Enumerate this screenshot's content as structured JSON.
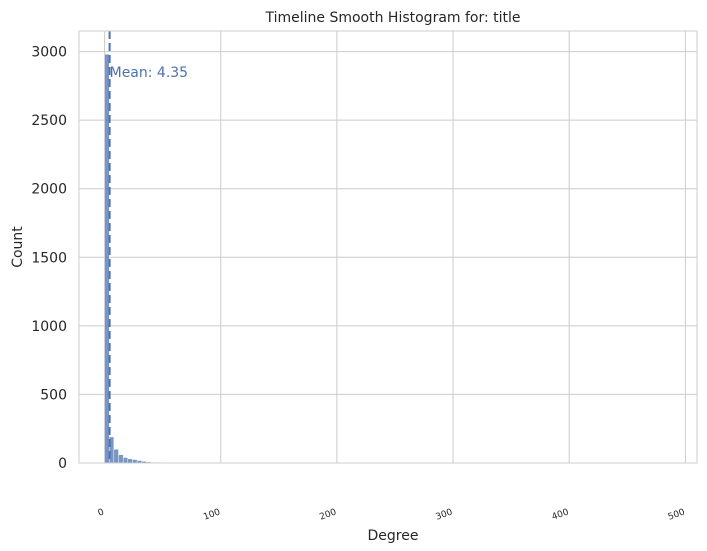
{
  "chart_data": {
    "type": "bar",
    "title": "Timeline Smooth Histogram for: title",
    "xlabel": "Degree",
    "ylabel": "Count",
    "xlim": [
      -22,
      510
    ],
    "ylim": [
      0,
      3150
    ],
    "xticks": [
      0,
      100,
      200,
      300,
      400,
      500
    ],
    "xtick_labels": [
      "0",
      "100",
      "200",
      "300",
      "400",
      "500"
    ],
    "yticks": [
      0,
      500,
      1000,
      1500,
      2000,
      2500,
      3000
    ],
    "ytick_labels": [
      "0",
      "500",
      "1000",
      "1500",
      "2000",
      "2500",
      "3000"
    ],
    "grid": true,
    "bin_width": 4,
    "bins": [
      {
        "x": 0,
        "count": 2980
      },
      {
        "x": 4,
        "count": 190
      },
      {
        "x": 8,
        "count": 100
      },
      {
        "x": 12,
        "count": 60
      },
      {
        "x": 16,
        "count": 40
      },
      {
        "x": 20,
        "count": 30
      },
      {
        "x": 24,
        "count": 25
      },
      {
        "x": 28,
        "count": 18
      },
      {
        "x": 32,
        "count": 12
      },
      {
        "x": 36,
        "count": 8
      },
      {
        "x": 40,
        "count": 6
      },
      {
        "x": 44,
        "count": 5
      },
      {
        "x": 48,
        "count": 4
      },
      {
        "x": 52,
        "count": 3
      },
      {
        "x": 56,
        "count": 3
      },
      {
        "x": 60,
        "count": 2
      },
      {
        "x": 64,
        "count": 2
      },
      {
        "x": 68,
        "count": 2
      },
      {
        "x": 72,
        "count": 1
      },
      {
        "x": 76,
        "count": 1
      },
      {
        "x": 80,
        "count": 1
      }
    ],
    "mean_line": {
      "value": 4.35,
      "label": "Mean: 4.35"
    },
    "colors": {
      "bar": "#4c72b0",
      "mean": "#4c72b0",
      "grid": "#cccccc",
      "spine": "#cccccc",
      "text": "#262626",
      "background": "#ffffff"
    }
  }
}
